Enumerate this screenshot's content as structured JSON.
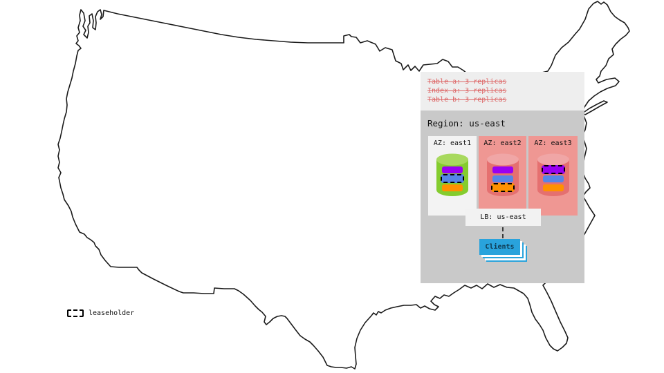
{
  "colors": {
    "map_stroke": "#1a1a1a",
    "panel_light": "#eeeeee",
    "region_bg": "#c9c9c9",
    "az_light_bg": "#f3f3f3",
    "az_pink_bg": "#ef9793",
    "strike_red": "#dd6565",
    "replica_purple": "#9900f2",
    "replica_blue": "#5585e8",
    "replica_orange": "#ff9100",
    "green_cylinder_body": "#84cc2e",
    "green_cylinder_top": "#a8d95e",
    "red_cylinder_body": "#e57070",
    "red_cylinder_top": "#f0a6a6",
    "lb_bg": "#f2f2f2",
    "clients_blue": "#29a3dc",
    "clients_text": "#0e3a52"
  },
  "zone_config_panel": {
    "lines": [
      "Table a: 3 replicas",
      "Index a: 3 replicas",
      "Table b: 3 replicas"
    ]
  },
  "region_panel": {
    "title": "Region: us-east",
    "load_balancer": "LB: us-east",
    "clients": "Clients",
    "azs": [
      {
        "label": "AZ: east1",
        "box_bg": "#f3f3f3",
        "cylinder_body": "#84cc2e",
        "cylinder_top": "#a8d95e",
        "replicas": [
          {
            "color": "#9900f2",
            "leaseholder": false
          },
          {
            "color": "#5585e8",
            "leaseholder": true
          },
          {
            "color": "#ff9100",
            "leaseholder": false
          }
        ]
      },
      {
        "label": "AZ: east2",
        "box_bg": "#ef9793",
        "cylinder_body": "#e57070",
        "cylinder_top": "#f0a6a6",
        "replicas": [
          {
            "color": "#9900f2",
            "leaseholder": false
          },
          {
            "color": "#5585e8",
            "leaseholder": false
          },
          {
            "color": "#ff9100",
            "leaseholder": true
          }
        ]
      },
      {
        "label": "AZ: east3",
        "box_bg": "#ef9793",
        "cylinder_body": "#e57070",
        "cylinder_top": "#f0a6a6",
        "replicas": [
          {
            "color": "#9900f2",
            "leaseholder": true
          },
          {
            "color": "#5585e8",
            "leaseholder": false
          },
          {
            "color": "#ff9100",
            "leaseholder": false
          }
        ]
      }
    ]
  },
  "legend": {
    "leaseholder": "leaseholder"
  }
}
